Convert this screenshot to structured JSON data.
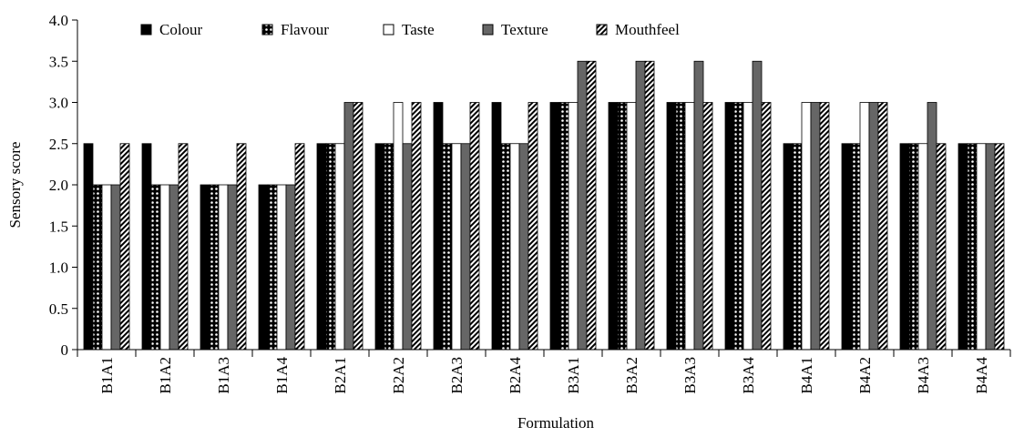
{
  "chart_data": {
    "type": "bar",
    "x_label": "Formulation",
    "y_label": "Sensory score",
    "categories": [
      "B1A1",
      "B1A2",
      "B1A3",
      "B1A4",
      "B2A1",
      "B2A2",
      "B2A3",
      "B2A4",
      "B3A1",
      "B3A2",
      "B3A3",
      "B3A4",
      "B4A1",
      "B4A2",
      "B4A3",
      "B4A4"
    ],
    "series": [
      {
        "name": "Colour",
        "color": "#000000",
        "pattern": "solid",
        "values": [
          2.5,
          2.5,
          2,
          2,
          2.5,
          2.5,
          3,
          3,
          3,
          3,
          3,
          3,
          2.5,
          2.5,
          2.5,
          2.5
        ]
      },
      {
        "name": "Flavour",
        "color": "#000000",
        "pattern": "dots",
        "values": [
          2,
          2,
          2,
          2,
          2.5,
          2.5,
          2.5,
          2.5,
          3,
          3,
          3,
          3,
          2.5,
          2.5,
          2.5,
          2.5
        ]
      },
      {
        "name": "Taste",
        "color": "#ffffff",
        "pattern": "solid",
        "values": [
          2,
          2,
          2,
          2,
          2.5,
          3,
          2.5,
          2.5,
          3,
          3,
          3,
          3,
          3,
          3,
          2.5,
          2.5
        ]
      },
      {
        "name": "Texture",
        "color": "#666666",
        "pattern": "solid",
        "values": [
          2,
          2,
          2,
          2,
          3,
          2.5,
          2.5,
          2.5,
          3.5,
          3.5,
          3.5,
          3.5,
          3,
          3,
          3,
          2.5
        ]
      },
      {
        "name": "Mouthfeel",
        "color": "#ffffff",
        "pattern": "hatch",
        "values": [
          2.5,
          2.5,
          2.5,
          2.5,
          3,
          3,
          3,
          3,
          3.5,
          3.5,
          3,
          3,
          3,
          3,
          2.5,
          2.5
        ]
      }
    ],
    "ylim": [
      0,
      4
    ],
    "yticks": [
      0,
      0.5,
      {
        "value": 1,
        "label": "1.0"
      },
      1.5,
      {
        "value": 2,
        "label": "2.0"
      },
      2.5,
      {
        "value": 3,
        "label": "3.0"
      },
      3.5,
      {
        "value": 4,
        "label": "4.0"
      }
    ],
    "grid": false,
    "legend": "top"
  }
}
